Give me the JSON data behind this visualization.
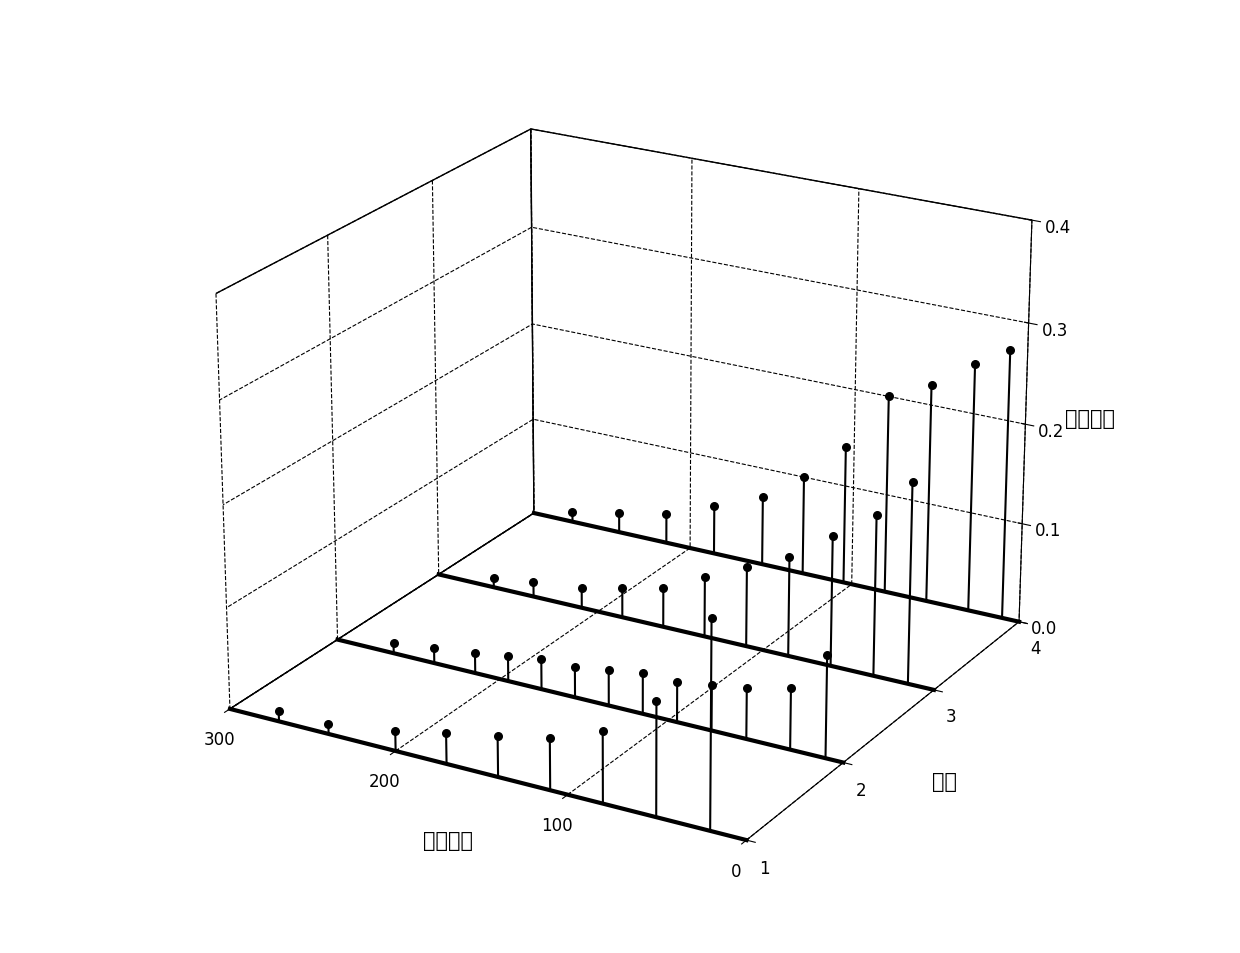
{
  "xlabel": "相关时延",
  "ylabel": "信道",
  "zlabel": "脉冲响应",
  "xlim": [
    0,
    300
  ],
  "ylim": [
    1,
    4
  ],
  "zlim": [
    0,
    0.4
  ],
  "xticks": [
    0,
    100,
    200,
    300
  ],
  "yticks": [
    1,
    2,
    3,
    4
  ],
  "zticks": [
    0,
    0.1,
    0.2,
    0.3,
    0.4
  ],
  "channels": [
    1,
    2,
    3,
    4
  ],
  "channel_data": {
    "1": {
      "lags": [
        20,
        50,
        80,
        110,
        140,
        170,
        200,
        240,
        270
      ],
      "values": [
        0.2,
        0.11,
        0.07,
        0.05,
        0.04,
        0.03,
        0.02,
        0.01,
        0.01
      ]
    },
    "2": {
      "lags": [
        10,
        30,
        55,
        75,
        95,
        115,
        135,
        155,
        175,
        195,
        215,
        240,
        265
      ],
      "values": [
        0.1,
        0.06,
        0.05,
        0.045,
        0.04,
        0.04,
        0.035,
        0.03,
        0.03,
        0.025,
        0.02,
        0.015,
        0.01
      ]
    },
    "3": {
      "lags": [
        15,
        35,
        60,
        85,
        110,
        135,
        160,
        185,
        210,
        240,
        265
      ],
      "values": [
        0.2,
        0.16,
        0.13,
        0.1,
        0.08,
        0.06,
        0.04,
        0.03,
        0.02,
        0.015,
        0.01
      ]
    },
    "4": {
      "lags": [
        10,
        30,
        55,
        80,
        105,
        130,
        155,
        185,
        215,
        245,
        275
      ],
      "values": [
        0.27,
        0.25,
        0.22,
        0.2,
        0.14,
        0.1,
        0.07,
        0.05,
        0.03,
        0.02,
        0.01
      ]
    }
  },
  "stem_color": "#000000",
  "marker_color": "#000000",
  "baseline_color": "#000000",
  "background_color": "#ffffff",
  "elev": 22,
  "azim": -60,
  "label_font_size": 15,
  "tick_font_size": 12,
  "baseline_lw": 3.0,
  "stem_lw": 1.5,
  "marker_size": 30
}
